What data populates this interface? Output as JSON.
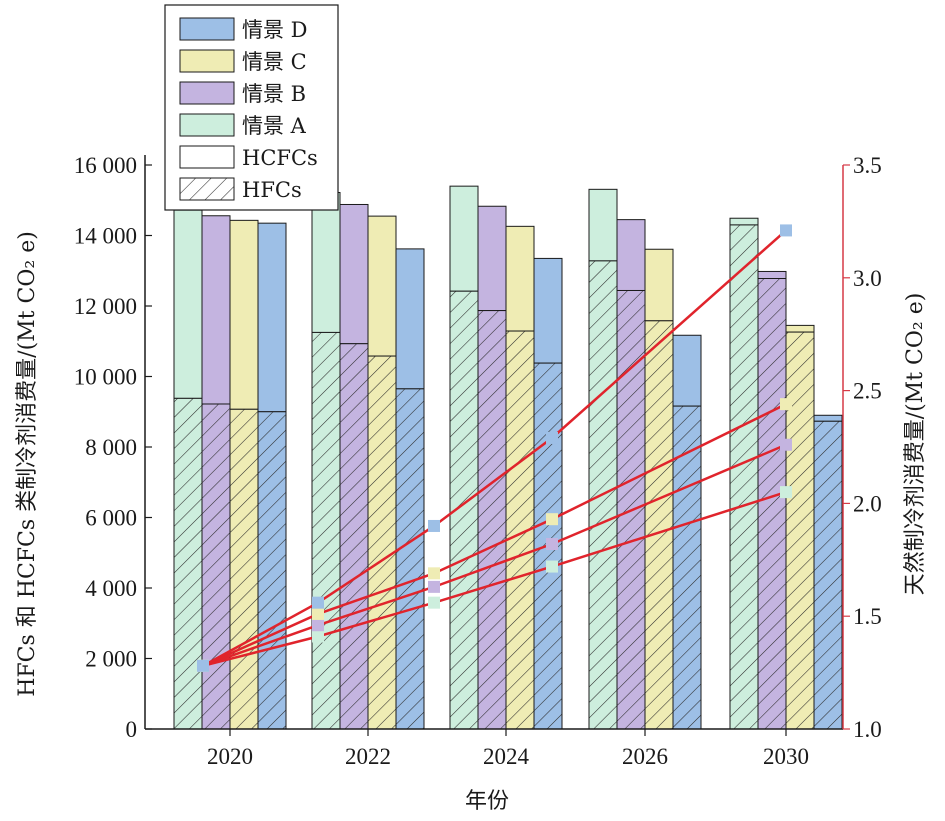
{
  "chart_data": {
    "type": "bar",
    "categories": [
      "2020",
      "2022",
      "2024",
      "2026",
      "2030"
    ],
    "xlabel": "年份",
    "ylabel_left": "HFCs 和 HCFCs 类制冷剂消费量/(Mt CO₂ e)",
    "ylabel_right": "天然制冷剂消费量/(Mt CO₂ e)",
    "ylim_left": [
      0,
      16000
    ],
    "yticks_left": [
      0,
      2000,
      4000,
      6000,
      8000,
      10000,
      12000,
      14000,
      16000
    ],
    "ytick_labels_left": [
      "0",
      "2 000",
      "4 000",
      "6 000",
      "8 000",
      "10 000",
      "12 000",
      "14 000",
      "16 000"
    ],
    "ylim_right": [
      1.0,
      3.5
    ],
    "yticks_right": [
      1.0,
      1.5,
      2.0,
      2.5,
      3.0,
      3.5
    ],
    "ytick_labels_right": [
      "1.0",
      "1.5",
      "2.0",
      "2.5",
      "3.0",
      "3.5"
    ],
    "legend": {
      "placement": "top-left",
      "entries": [
        {
          "key": "D",
          "label": "情景 D",
          "swatch": "scenario-D"
        },
        {
          "key": "C",
          "label": "情景 C",
          "swatch": "scenario-C"
        },
        {
          "key": "B",
          "label": "情景 B",
          "swatch": "scenario-B"
        },
        {
          "key": "A",
          "label": "情景 A",
          "swatch": "scenario-A"
        },
        {
          "key": "HCFCs",
          "label": "HCFCs",
          "swatch": "plain"
        },
        {
          "key": "HFCs",
          "label": "HFCs",
          "swatch": "hatched"
        }
      ]
    },
    "colors": {
      "A": "#cdeedd",
      "B": "#c4b4e0",
      "C": "#efecb4",
      "D": "#9dbfe6",
      "line": "#e0242c",
      "right_axis": "#d63a46"
    },
    "scenario_order": [
      "A",
      "B",
      "C",
      "D"
    ],
    "bar_series": {
      "A": {
        "HFCs": [
          9380,
          11250,
          12420,
          13280,
          14300
        ],
        "total": [
          14720,
          15220,
          15400,
          15310,
          14490
        ]
      },
      "B": {
        "HFCs": [
          9220,
          10930,
          11870,
          12440,
          12780
        ],
        "total": [
          14560,
          14880,
          14830,
          14450,
          12980
        ]
      },
      "C": {
        "HFCs": [
          9070,
          10580,
          11290,
          11580,
          11260
        ],
        "total": [
          14430,
          14550,
          14260,
          13610,
          11450
        ]
      },
      "D": {
        "HFCs": [
          9000,
          9650,
          10380,
          9160,
          8730
        ],
        "total": [
          14350,
          13620,
          13350,
          11170,
          8900
        ]
      }
    },
    "line_series": {
      "A": {
        "x": [
          "2020",
          "2022",
          "2024",
          "2026",
          "2030"
        ],
        "y": [
          1.28,
          1.41,
          1.56,
          1.72,
          2.05
        ]
      },
      "B": {
        "x": [
          "2020",
          "2022",
          "2024",
          "2026",
          "2030"
        ],
        "y": [
          1.28,
          1.46,
          1.63,
          1.82,
          2.26
        ]
      },
      "C": {
        "x": [
          "2020",
          "2022",
          "2024",
          "2026",
          "2030"
        ],
        "y": [
          1.28,
          1.51,
          1.69,
          1.93,
          2.44
        ]
      },
      "D": {
        "x": [
          "2020",
          "2022",
          "2024",
          "2026",
          "2030"
        ],
        "y": [
          1.28,
          1.56,
          1.9,
          2.29,
          3.21
        ]
      }
    }
  }
}
